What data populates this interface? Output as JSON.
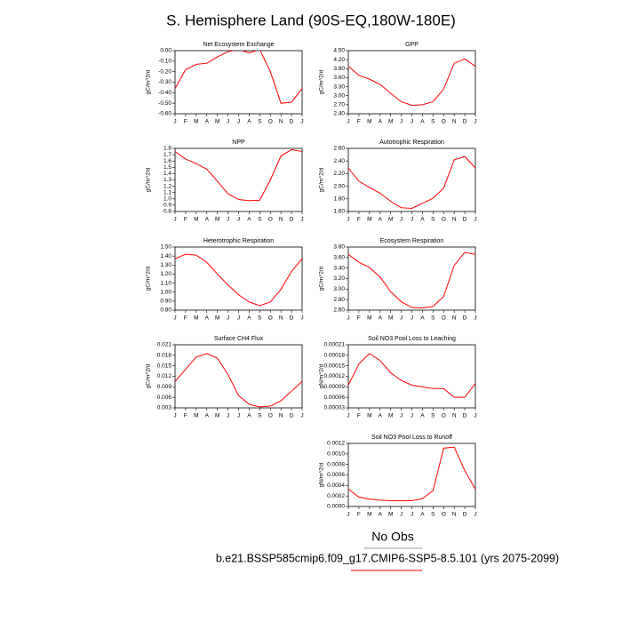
{
  "title": "S. Hemisphere Land (90S-EQ,180W-180E)",
  "footer": {
    "obs": "No Obs",
    "case": "b.e21.BSSP585cmip6.f09_g17.CMIP6-SSP5-8.5.101 (yrs 2075-2099)"
  },
  "chart_data": [
    {
      "type": "line",
      "title": "Net Ecosystem Exchange",
      "y_label": "gC/m^2/d",
      "color": "#ff0000",
      "categories": [
        "J",
        "F",
        "M",
        "A",
        "M",
        "J",
        "J",
        "A",
        "S",
        "O",
        "N",
        "D",
        "J"
      ],
      "values": [
        -0.36,
        -0.18,
        -0.13,
        -0.12,
        -0.06,
        -0.01,
        0.01,
        -0.02,
        0.01,
        -0.2,
        -0.5,
        -0.49,
        -0.36
      ],
      "ylim": [
        -0.6,
        0.0
      ],
      "yticks": [
        {
          "value": -0.6,
          "label": "-0.60"
        },
        {
          "value": -0.5,
          "label": "-0.50"
        },
        {
          "value": -0.4,
          "label": "-0.40"
        },
        {
          "value": -0.3,
          "label": "-0.30"
        },
        {
          "value": -0.2,
          "label": "-0.20"
        },
        {
          "value": -0.1,
          "label": "-0.10"
        },
        {
          "value": 0,
          "label": "0.00"
        }
      ]
    },
    {
      "type": "line",
      "title": "GPP",
      "y_label": "gC/m^2/d",
      "color": "#ff0000",
      "categories": [
        "J",
        "F",
        "M",
        "A",
        "M",
        "J",
        "J",
        "A",
        "S",
        "O",
        "N",
        "D",
        "J"
      ],
      "values": [
        3.98,
        3.68,
        3.55,
        3.38,
        3.08,
        2.8,
        2.68,
        2.7,
        2.8,
        3.22,
        4.08,
        4.22,
        3.98
      ],
      "ylim": [
        2.4,
        4.5
      ],
      "yticks": [
        {
          "value": 2.4,
          "label": "2.40"
        },
        {
          "value": 2.7,
          "label": "2.70"
        },
        {
          "value": 3.0,
          "label": "3.00"
        },
        {
          "value": 3.3,
          "label": "3.30"
        },
        {
          "value": 3.6,
          "label": "3.60"
        },
        {
          "value": 3.9,
          "label": "3.90"
        },
        {
          "value": 4.2,
          "label": "4.20"
        },
        {
          "value": 4.5,
          "label": "4.50"
        }
      ]
    },
    {
      "type": "line",
      "title": "NPP",
      "y_label": "gC/m^2/d",
      "color": "#ff0000",
      "categories": [
        "J",
        "F",
        "M",
        "A",
        "M",
        "J",
        "J",
        "A",
        "S",
        "O",
        "N",
        "D",
        "J"
      ],
      "values": [
        1.75,
        1.63,
        1.56,
        1.47,
        1.28,
        1.08,
        0.99,
        0.97,
        0.98,
        1.3,
        1.68,
        1.78,
        1.75
      ],
      "ylim": [
        0.8,
        1.8
      ],
      "yticks": [
        0.8,
        0.9,
        {
          "value": 1,
          "label": "1.0"
        },
        1.1,
        1.2,
        1.3,
        1.4,
        1.5,
        1.6,
        1.7,
        1.8
      ]
    },
    {
      "type": "line",
      "title": "Autotrophic Respiration",
      "y_label": "gC/m^2/d",
      "color": "#ff0000",
      "categories": [
        "J",
        "F",
        "M",
        "A",
        "M",
        "J",
        "J",
        "A",
        "S",
        "O",
        "N",
        "D",
        "J"
      ],
      "values": [
        2.29,
        2.08,
        1.98,
        1.89,
        1.76,
        1.66,
        1.65,
        1.73,
        1.81,
        1.97,
        2.42,
        2.47,
        2.29
      ],
      "ylim": [
        1.6,
        2.6
      ],
      "yticks": [
        {
          "value": 1.6,
          "label": "1.60"
        },
        {
          "value": 1.8,
          "label": "1.80"
        },
        {
          "value": 2.0,
          "label": "2.00"
        },
        {
          "value": 2.2,
          "label": "2.20"
        },
        {
          "value": 2.4,
          "label": "2.40"
        },
        {
          "value": 2.6,
          "label": "2.60"
        }
      ]
    },
    {
      "type": "line",
      "title": "Heterotrophic Respiration",
      "y_label": "gC/m^2/d",
      "color": "#ff0000",
      "categories": [
        "J",
        "F",
        "M",
        "A",
        "M",
        "J",
        "J",
        "A",
        "S",
        "O",
        "N",
        "D",
        "J"
      ],
      "values": [
        1.37,
        1.42,
        1.41,
        1.33,
        1.2,
        1.08,
        0.97,
        0.89,
        0.85,
        0.89,
        1.03,
        1.23,
        1.37
      ],
      "ylim": [
        0.8,
        1.5
      ],
      "yticks": [
        {
          "value": 0.8,
          "label": "0.80"
        },
        {
          "value": 0.9,
          "label": "0.90"
        },
        {
          "value": 1.0,
          "label": "1.00"
        },
        {
          "value": 1.1,
          "label": "1.10"
        },
        {
          "value": 1.2,
          "label": "1.20"
        },
        {
          "value": 1.3,
          "label": "1.30"
        },
        {
          "value": 1.4,
          "label": "1.40"
        },
        {
          "value": 1.5,
          "label": "1.50"
        }
      ]
    },
    {
      "type": "line",
      "title": "Ecosystem Respiration",
      "y_label": "gC/m^2/d",
      "color": "#ff0000",
      "categories": [
        "J",
        "F",
        "M",
        "A",
        "M",
        "J",
        "J",
        "A",
        "S",
        "O",
        "N",
        "D",
        "J"
      ],
      "values": [
        3.66,
        3.51,
        3.41,
        3.23,
        2.95,
        2.76,
        2.65,
        2.64,
        2.67,
        2.86,
        3.45,
        3.7,
        3.66
      ],
      "ylim": [
        2.6,
        3.8
      ],
      "yticks": [
        {
          "value": 2.6,
          "label": "2.60"
        },
        {
          "value": 2.8,
          "label": "2.80"
        },
        {
          "value": 3.0,
          "label": "3.00"
        },
        {
          "value": 3.2,
          "label": "3.20"
        },
        {
          "value": 3.4,
          "label": "3.40"
        },
        {
          "value": 3.6,
          "label": "3.60"
        },
        {
          "value": 3.8,
          "label": "3.80"
        }
      ]
    },
    {
      "type": "line",
      "title": "Surface CH4 Flux",
      "y_label": "gC/m^2/d",
      "color": "#ff0000",
      "categories": [
        "J",
        "F",
        "M",
        "A",
        "M",
        "J",
        "J",
        "A",
        "S",
        "O",
        "N",
        "D",
        "J"
      ],
      "values": [
        0.0105,
        0.014,
        0.0175,
        0.0185,
        0.0172,
        0.0125,
        0.0065,
        0.004,
        0.0033,
        0.0035,
        0.005,
        0.0078,
        0.0105
      ],
      "ylim": [
        0.003,
        0.021
      ],
      "yticks": [
        0.003,
        0.006,
        0.009,
        0.012,
        0.015,
        0.018,
        0.021
      ]
    },
    {
      "type": "line",
      "title": "Soil NO3 Pool Loss to Leaching",
      "y_label": "gN/m^2/d",
      "color": "#ff0000",
      "categories": [
        "J",
        "F",
        "M",
        "A",
        "M",
        "J",
        "J",
        "A",
        "S",
        "O",
        "N",
        "D",
        "J"
      ],
      "values": [
        9.5e-05,
        0.000155,
        0.000185,
        0.000165,
        0.00013,
        0.000108,
        9.5e-05,
        9e-05,
        8.5e-05,
        8.5e-05,
        6e-05,
        6e-05,
        0.0001
      ],
      "ylim": [
        3e-05,
        0.00021
      ],
      "yticks": [
        3e-05,
        6e-05,
        9e-05,
        0.00012,
        0.00015,
        0.00018,
        0.00021
      ]
    },
    {
      "type": "line",
      "title": "Soil NO3 Pool Loss to Runoff",
      "y_label": "gN/m^2/d",
      "color": "#ff0000",
      "categories": [
        "J",
        "F",
        "M",
        "A",
        "M",
        "J",
        "J",
        "A",
        "S",
        "O",
        "N",
        "D",
        "J"
      ],
      "values": [
        0.00033,
        0.00018,
        0.00014,
        0.00012,
        0.00011,
        0.00011,
        0.00011,
        0.00015,
        0.0003,
        0.00111,
        0.00113,
        0.00068,
        0.00033
      ],
      "ylim": [
        0,
        0.0012
      ],
      "yticks": [
        {
          "value": 0,
          "label": "0.0000"
        },
        {
          "value": 0.0002,
          "label": "0.0002"
        },
        {
          "value": 0.0004,
          "label": "0.0004"
        },
        {
          "value": 0.0006,
          "label": "0.0006"
        },
        {
          "value": 0.0008,
          "label": "0.0008"
        },
        {
          "value": 0.001,
          "label": "0.0010"
        },
        {
          "value": 0.0012,
          "label": "0.0012"
        }
      ]
    }
  ]
}
